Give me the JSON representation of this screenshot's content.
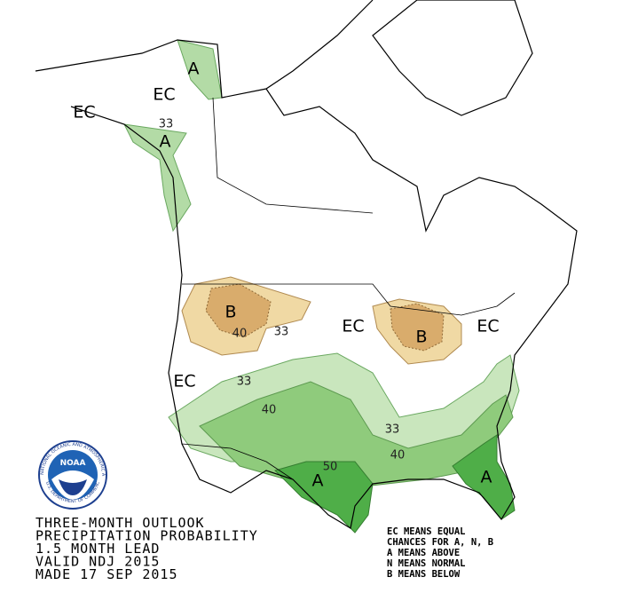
{
  "title_lines": [
    "THREE-MONTH OUTLOOK",
    "PRECIPITATION PROBABILITY",
    "1.5 MONTH LEAD",
    "VALID NDJ 2015",
    "MADE 17 SEP 2015"
  ],
  "legend_lines": [
    "EC MEANS EQUAL",
    "CHANCES FOR A, N, B",
    "A MEANS ABOVE",
    "N MEANS NORMAL",
    "B MEANS BELOW"
  ],
  "map_labels": [
    "EC",
    "EC",
    "33",
    "A",
    "A",
    "B",
    "40",
    "33",
    "EC",
    "B",
    "EC",
    "EC",
    "33",
    "40",
    "33",
    "40",
    "50",
    "A",
    "A"
  ],
  "logo": {
    "name": "NOAA",
    "agency": "NATIONAL OCEANIC AND ATMOSPHERIC ADMINISTRATION",
    "department": "U.S. DEPARTMENT OF COMMERCE"
  }
}
